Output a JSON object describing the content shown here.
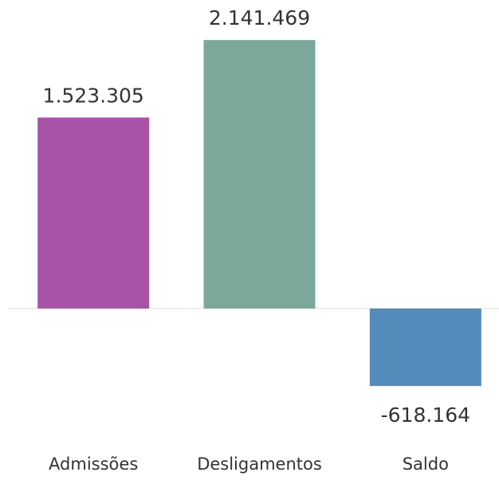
{
  "chart_data": {
    "type": "bar",
    "categories": [
      "Admissões",
      "Desligamentos",
      "Saldo"
    ],
    "values": [
      1523305,
      2141469,
      -618164
    ],
    "value_labels": [
      "1.523.305",
      "2.141.469",
      "-618.164"
    ],
    "colors": [
      "#a853a8",
      "#7ba89b",
      "#558bbb"
    ],
    "ylim": [
      -700000,
      2200000
    ]
  }
}
